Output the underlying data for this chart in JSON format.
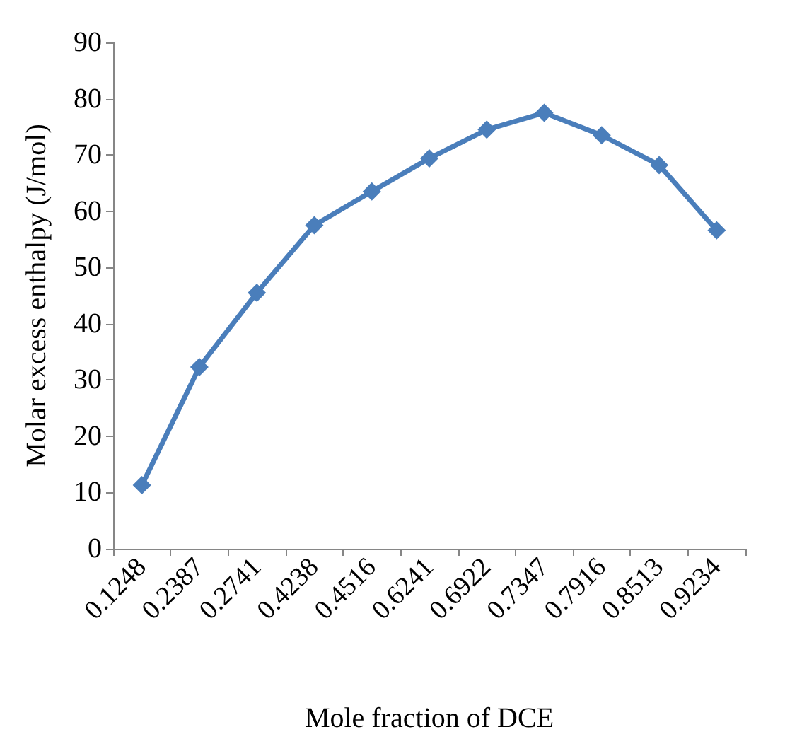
{
  "chart_data": {
    "type": "line",
    "xlabel": "Mole fraction of DCE",
    "ylabel": "Molar excess enthalpy (J/mol)",
    "categories": [
      "0.1248",
      "0.2387",
      "0.2741",
      "0.4238",
      "0.4516",
      "0.6241",
      "0.6922",
      "0.7347",
      "0.7916",
      "0.8513",
      "0.9234"
    ],
    "series": [
      {
        "color": "#4a7ebb",
        "values": [
          11.3,
          32.3,
          45.5,
          57.5,
          63.5,
          69.4,
          74.5,
          77.5,
          73.5,
          68.2,
          56.6
        ]
      }
    ],
    "ylim": [
      0,
      90
    ],
    "yticks": [
      0,
      10,
      20,
      30,
      40,
      50,
      60,
      70,
      80,
      90
    ],
    "grid": false,
    "marker": "diamond",
    "line_style": "solid"
  }
}
